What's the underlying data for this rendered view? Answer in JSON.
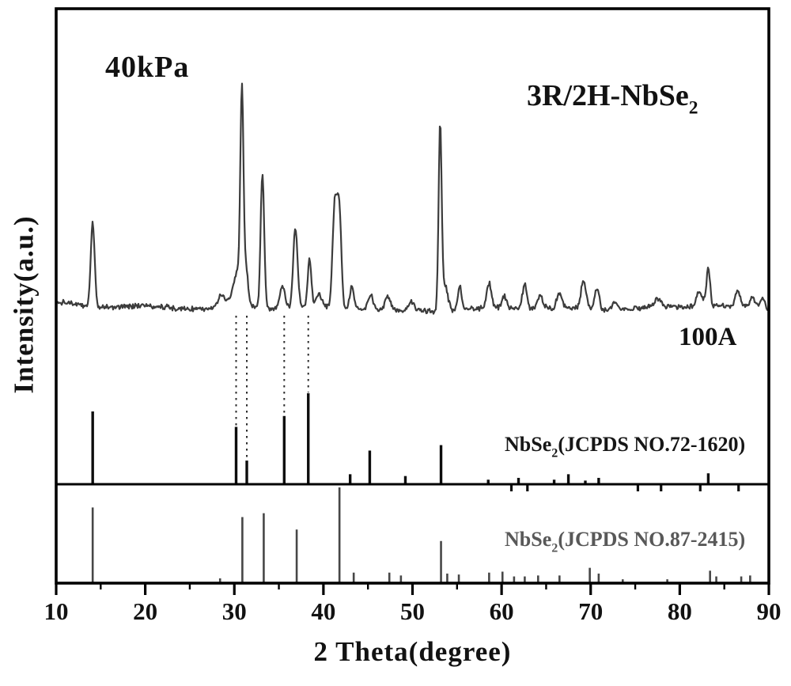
{
  "labels": {
    "pressure": "40kPa",
    "phase_prefix": "3R/2H-NbSe",
    "phase_sub": "2",
    "sample": "100A",
    "ref1_prefix": "NbSe",
    "ref1_sub": "2",
    "ref1_suffix": "(JCPDS NO.72-1620)",
    "ref2_prefix": "NbSe",
    "ref2_sub": "2",
    "ref2_suffix": "(JCPDS NO.87-2415)",
    "xlabel": "2 Theta(degree)",
    "ylabel": "Intensity(a.u.)"
  },
  "chart_data": {
    "type": "line",
    "title": "",
    "xlabel": "2 Theta(degree)",
    "ylabel": "Intensity(a.u.)",
    "x_range": [
      10,
      90
    ],
    "x_major_ticks": [
      10,
      20,
      30,
      40,
      50,
      60,
      70,
      80,
      90
    ],
    "x_minor_tick_step": 5,
    "grid": false,
    "legend_position": "inline text labels",
    "annotations": {
      "pressure": "40kPa",
      "phase": "3R/2H-NbSe2",
      "sample": "100A"
    },
    "colors": {
      "experimental_curve": "#3c3c3c",
      "reference1_sticks": "#0d0d0d",
      "reference2_sticks": "#474747",
      "frame": "#000000",
      "guide_lines": "#2b2b2b"
    },
    "experimental_peaks_two_theta_intensity_sigma": [
      [
        14.1,
        45,
        0.22
      ],
      [
        28.6,
        7,
        0.4
      ],
      [
        30.5,
        20,
        0.6
      ],
      [
        30.85,
        100,
        0.17
      ],
      [
        31.3,
        14,
        0.25
      ],
      [
        33.15,
        72,
        0.2
      ],
      [
        35.4,
        11,
        0.3
      ],
      [
        36.85,
        43,
        0.24
      ],
      [
        38.45,
        25,
        0.2
      ],
      [
        39.5,
        7,
        0.3
      ],
      [
        41.3,
        56,
        0.26
      ],
      [
        41.8,
        48,
        0.22
      ],
      [
        43.2,
        12,
        0.24
      ],
      [
        45.3,
        8,
        0.3
      ],
      [
        47.2,
        7,
        0.3
      ],
      [
        49.9,
        5,
        0.3
      ],
      [
        53.1,
        95,
        0.17
      ],
      [
        53.6,
        14,
        0.35
      ],
      [
        55.3,
        13,
        0.22
      ],
      [
        58.6,
        13,
        0.25
      ],
      [
        60.3,
        6,
        0.25
      ],
      [
        62.6,
        13,
        0.25
      ],
      [
        64.3,
        7,
        0.3
      ],
      [
        66.5,
        8,
        0.3
      ],
      [
        69.2,
        15,
        0.28
      ],
      [
        70.7,
        12,
        0.25
      ],
      [
        72.7,
        4,
        0.3
      ],
      [
        77.5,
        4,
        0.4
      ],
      [
        82.2,
        8,
        0.35
      ],
      [
        83.2,
        21,
        0.2
      ],
      [
        86.5,
        8,
        0.25
      ],
      [
        88.2,
        5,
        0.3
      ],
      [
        89.3,
        6,
        0.25
      ]
    ],
    "reference_patterns": [
      {
        "name": "NbSe2(JCPDS NO.72-1620)",
        "peaks_two_theta_intensity": [
          [
            14.1,
            80
          ],
          [
            30.2,
            63
          ],
          [
            31.4,
            26
          ],
          [
            35.6,
            75
          ],
          [
            38.3,
            100
          ],
          [
            43.0,
            11
          ],
          [
            45.2,
            37
          ],
          [
            49.2,
            9
          ],
          [
            53.2,
            43
          ],
          [
            58.5,
            5
          ],
          [
            61.9,
            7
          ],
          [
            65.9,
            5
          ],
          [
            67.5,
            11
          ],
          [
            69.4,
            4
          ],
          [
            70.9,
            7
          ],
          [
            83.2,
            12
          ]
        ],
        "below_baseline_marks_two_theta": [
          61.1,
          62.9,
          75.3,
          77.9,
          82.3,
          86.6
        ]
      },
      {
        "name": "NbSe2(JCPDS NO.87-2415)",
        "peaks_two_theta_intensity": [
          [
            14.1,
            79
          ],
          [
            28.4,
            5
          ],
          [
            30.9,
            69
          ],
          [
            33.3,
            73
          ],
          [
            37.0,
            56
          ],
          [
            41.8,
            100
          ],
          [
            43.4,
            11
          ],
          [
            47.4,
            11
          ],
          [
            48.7,
            8
          ],
          [
            53.2,
            44
          ],
          [
            53.9,
            10
          ],
          [
            55.2,
            9
          ],
          [
            58.6,
            11
          ],
          [
            60.1,
            12
          ],
          [
            61.4,
            7
          ],
          [
            62.6,
            7
          ],
          [
            64.1,
            8
          ],
          [
            66.5,
            8
          ],
          [
            69.9,
            16
          ],
          [
            70.9,
            10
          ],
          [
            73.6,
            4
          ],
          [
            78.6,
            4
          ],
          [
            83.4,
            13
          ],
          [
            84.1,
            7
          ],
          [
            86.9,
            7
          ],
          [
            87.9,
            8
          ]
        ]
      }
    ],
    "guide_lines_two_theta": [
      30.2,
      31.4,
      35.6,
      38.3
    ]
  }
}
